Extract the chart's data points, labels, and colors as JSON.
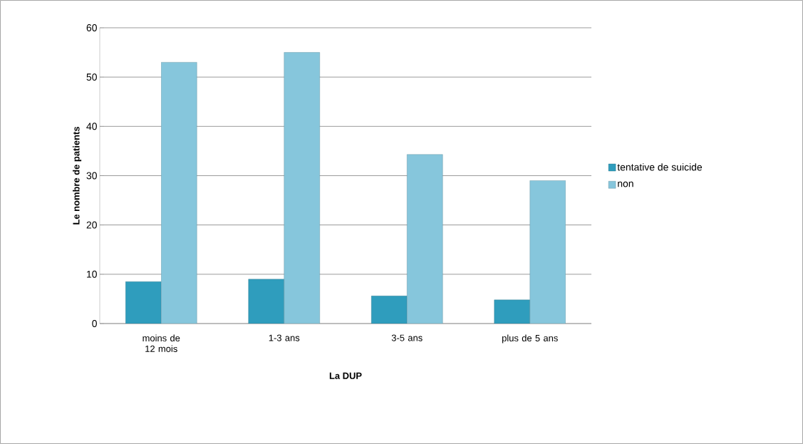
{
  "chart_data": {
    "type": "bar",
    "xlabel": "La DUP",
    "ylabel": "Le nombre de patients",
    "categories": [
      "moins de 12 mois",
      "1-3 ans",
      "3-5 ans",
      "plus de 5 ans"
    ],
    "series": [
      {
        "name": "tentative de suicide",
        "color": "#2f9dbd",
        "values": [
          8.5,
          9,
          5.6,
          4.8
        ]
      },
      {
        "name": "non",
        "color": "#86c6dc",
        "values": [
          53,
          55,
          34.3,
          29
        ]
      }
    ],
    "ylim": [
      0,
      60
    ],
    "yticks": [
      0,
      10,
      20,
      30,
      40,
      50,
      60
    ],
    "grid": "y",
    "legend": "right"
  }
}
